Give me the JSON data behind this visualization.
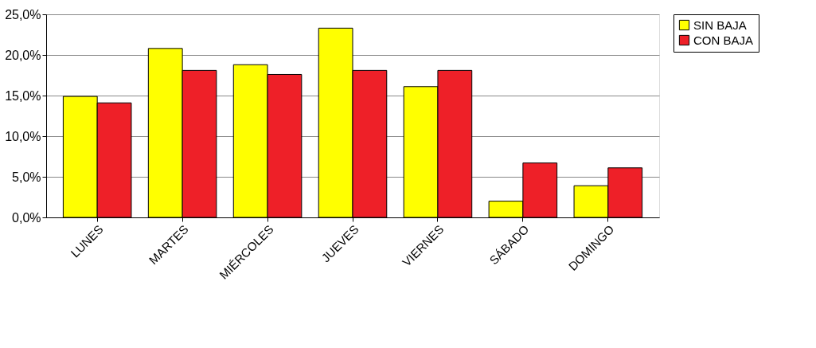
{
  "chart_data": {
    "type": "bar",
    "categories": [
      "LUNES",
      "MARTES",
      "MIÉRCOLES",
      "JUEVES",
      "VIERNES",
      "SÁBADO",
      "DOMINGO"
    ],
    "series": [
      {
        "name": "SIN BAJA",
        "color": "#ffff00",
        "values": [
          14.9,
          20.8,
          18.8,
          23.3,
          16.1,
          2.0,
          3.9
        ]
      },
      {
        "name": "CON BAJA",
        "color": "#ee2028",
        "values": [
          14.1,
          18.1,
          17.6,
          18.1,
          18.1,
          6.7,
          6.1
        ]
      }
    ],
    "ylim": [
      0,
      25
    ],
    "yticks": [
      {
        "value": 0,
        "label": "0,0%"
      },
      {
        "value": 5,
        "label": "5,0%"
      },
      {
        "value": 10,
        "label": "10,0%"
      },
      {
        "value": 15,
        "label": "15,0%"
      },
      {
        "value": 20,
        "label": "20,0%"
      },
      {
        "value": 25,
        "label": "25,0%"
      }
    ],
    "grid": "y",
    "legend": "top right"
  }
}
